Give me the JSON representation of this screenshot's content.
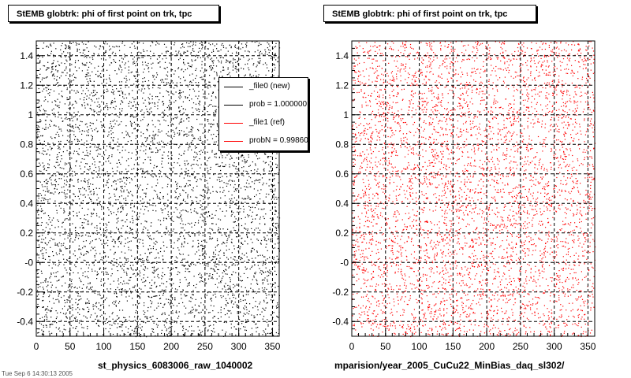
{
  "panels": [
    {
      "title": "StEMB globtrk: phi of first point on trk, tpc",
      "xlabel": "st_physics_6083006_raw_1040002",
      "color": "#000000",
      "seed": 17
    },
    {
      "title": "StEMB globtrk: phi of first point on trk, tpc",
      "xlabel": "mparision/year_2005_CuCu22_MinBias_daq_sl302/",
      "color": "#ff0000",
      "seed": 91
    }
  ],
  "legend": {
    "items": [
      {
        "label": "_file0 (new)",
        "color": "#000000"
      },
      {
        "label": "prob = 1.000000",
        "color": "#000000"
      },
      {
        "label": "_file1 (ref)",
        "color": "#ff0000"
      },
      {
        "label": "probN = 0.998602",
        "color": "#ff0000"
      }
    ]
  },
  "footer": "Tue Sep  6 14:30:13 2005",
  "chart_data": [
    {
      "type": "scatter",
      "title": "StEMB globtrk: phi of first point on trk, tpc",
      "xlabel": "st_physics_6083006_raw_1040002",
      "ylabel": "",
      "xlim": [
        0,
        360
      ],
      "ylim": [
        -0.5,
        1.5
      ],
      "xticks": [
        0,
        50,
        100,
        150,
        200,
        250,
        300,
        350
      ],
      "yticks": [
        "-0.4",
        "-0.2",
        "-0",
        "0.2",
        "0.4",
        "0.6",
        "0.8",
        "1",
        "1.2",
        "1.4"
      ],
      "grid": true,
      "series": [
        {
          "name": "_file0 (new)",
          "color": "#000000",
          "distribution": "uniform"
        }
      ]
    },
    {
      "type": "scatter",
      "title": "StEMB globtrk: phi of first point on trk, tpc",
      "xlabel": "mparision/year_2005_CuCu22_MinBias_daq_sl302/",
      "ylabel": "",
      "xlim": [
        0,
        360
      ],
      "ylim": [
        -0.5,
        1.5
      ],
      "xticks": [
        0,
        50,
        100,
        150,
        200,
        250,
        300,
        350
      ],
      "yticks": [
        "-0.4",
        "-0.2",
        "-0",
        "0.2",
        "0.4",
        "0.6",
        "0.8",
        "1",
        "1.2",
        "1.4"
      ],
      "grid": true,
      "series": [
        {
          "name": "_file1 (ref)",
          "color": "#ff0000",
          "distribution": "uniform"
        }
      ]
    }
  ]
}
